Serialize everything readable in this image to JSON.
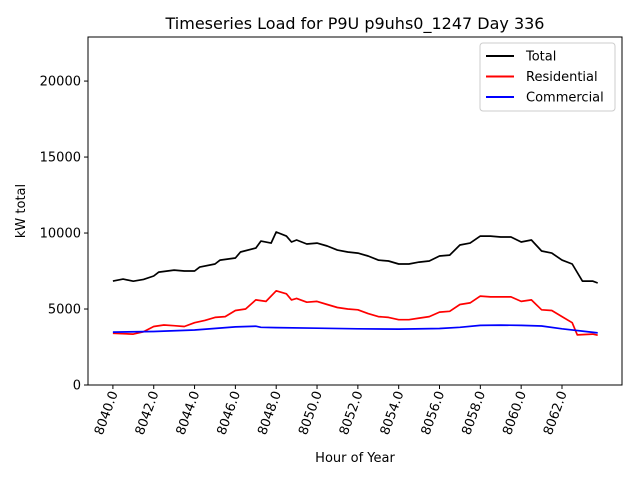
{
  "chart_data": {
    "type": "line",
    "title": "Timeseries Load for P9U p9uhs0_1247  Day 336",
    "xlabel": "Hour of Year",
    "ylabel": "kW total",
    "xlim": [
      8038.78,
      8064.94
    ],
    "ylim": [
      0,
      22900
    ],
    "xticks": [
      8040,
      8042,
      8044,
      8046,
      8048,
      8050,
      8052,
      8054,
      8056,
      8058,
      8060,
      8062
    ],
    "xtick_labels": [
      "8040.0",
      "8042.0",
      "8044.0",
      "8046.0",
      "8048.0",
      "8050.0",
      "8052.0",
      "8054.0",
      "8056.0",
      "8058.0",
      "8060.0",
      "8062.0"
    ],
    "yticks": [
      0,
      5000,
      10000,
      15000,
      20000
    ],
    "ytick_labels": [
      "0",
      "5000",
      "10000",
      "15000",
      "20000"
    ],
    "legend_position": "top-right",
    "grid": false,
    "series": [
      {
        "name": "Total",
        "color": "#000000",
        "x": [
          8040,
          8040.5,
          8041,
          8041.5,
          8042,
          8042.25,
          8043,
          8043.5,
          8044,
          8044.25,
          8045,
          8045.25,
          8046,
          8046.25,
          8047,
          8047.25,
          8047.75,
          8048,
          8048.5,
          8048.75,
          8049,
          8049.5,
          8050,
          8050.5,
          8051,
          8051.5,
          8052,
          8052.5,
          8053,
          8053.5,
          8054,
          8054.5,
          8055,
          8055.5,
          8056,
          8056.5,
          8057,
          8057.5,
          8058,
          8058.5,
          8059,
          8059.5,
          8060,
          8060.5,
          8061,
          8061.5,
          8062,
          8062.5,
          8063,
          8063.5,
          8063.75
        ],
        "y": [
          6840,
          6970,
          6830,
          6950,
          7170,
          7430,
          7560,
          7500,
          7500,
          7760,
          7960,
          8220,
          8360,
          8750,
          9010,
          9470,
          9340,
          10070,
          9800,
          9410,
          9540,
          9280,
          9340,
          9150,
          8880,
          8750,
          8680,
          8490,
          8220,
          8160,
          7960,
          7960,
          8090,
          8160,
          8490,
          8550,
          9210,
          9340,
          9800,
          9800,
          9740,
          9740,
          9410,
          9540,
          8820,
          8680,
          8220,
          7960,
          6840,
          6840,
          6710
        ]
      },
      {
        "name": "Residential",
        "color": "#ff0000",
        "x": [
          8040,
          8041,
          8041.5,
          8042,
          8042.5,
          8043,
          8043.5,
          8044,
          8044.5,
          8045,
          8045.5,
          8046,
          8046.5,
          8047,
          8047.5,
          8048,
          8048.5,
          8048.75,
          8049,
          8049.5,
          8050,
          8050.5,
          8051,
          8051.5,
          8052,
          8052.5,
          8053,
          8053.5,
          8054,
          8054.5,
          8055,
          8055.5,
          8056,
          8056.5,
          8057,
          8057.5,
          8058,
          8058.5,
          8059,
          8059.5,
          8060,
          8060.5,
          8061,
          8061.5,
          8062,
          8062.5,
          8062.75,
          8063.5,
          8063.75
        ],
        "y": [
          3400,
          3350,
          3500,
          3850,
          3950,
          3900,
          3850,
          4100,
          4250,
          4450,
          4500,
          4900,
          5000,
          5600,
          5500,
          6200,
          6000,
          5600,
          5700,
          5450,
          5500,
          5300,
          5100,
          5000,
          4950,
          4700,
          4500,
          4450,
          4300,
          4300,
          4400,
          4500,
          4800,
          4850,
          5300,
          5400,
          5850,
          5800,
          5800,
          5800,
          5500,
          5600,
          4950,
          4900,
          4500,
          4100,
          3300,
          3350,
          3280
        ]
      },
      {
        "name": "Commercial",
        "color": "#0000ff",
        "x": [
          8040,
          8042,
          8044,
          8046,
          8047,
          8047.25,
          8048,
          8050,
          8052,
          8054,
          8056,
          8057,
          8058,
          8059,
          8060,
          8061,
          8062,
          8063,
          8063.75
        ],
        "y": [
          3480,
          3520,
          3620,
          3820,
          3870,
          3800,
          3780,
          3740,
          3700,
          3680,
          3720,
          3800,
          3920,
          3940,
          3920,
          3880,
          3700,
          3550,
          3430
        ]
      }
    ]
  }
}
